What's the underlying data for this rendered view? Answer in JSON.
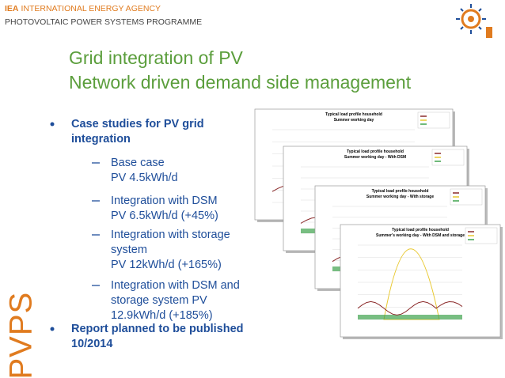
{
  "header": {
    "agency_abbr": "IEA",
    "agency": "INTERNATIONAL ENERGY AGENCY",
    "programme": "PHOTOVOLTAIC POWER SYSTEMS PROGRAMME"
  },
  "title": {
    "line1": "Grid integration of PV",
    "line2": "Network driven demand side management"
  },
  "bullets": [
    {
      "text": "Case studies for PV grid integration",
      "sub": [
        {
          "label": "Base case",
          "detail": "PV 4.5kWh/d"
        },
        {
          "label": "Integration with DSM",
          "detail": "PV 6.5kWh/d (+45%)"
        },
        {
          "label": "Integration with storage system",
          "detail": "PV 12kWh/d (+165%)"
        },
        {
          "label": "Integration with DSM and storage system PV 12.9kWh/d (+185%)"
        }
      ]
    },
    {
      "text": "Report planned to be published 10/2014"
    }
  ],
  "side_label": "PVPS",
  "figures": [
    {
      "title_line1": "Typical load profile household",
      "title_line2": "Summer working day"
    },
    {
      "title_line1": "Typical load profile household",
      "title_line2": "Summer working day - With DSM"
    },
    {
      "title_line1": "Typical load profile household",
      "title_line2": "Summer working day - With storage"
    },
    {
      "title_line1": "Typical load profile household",
      "title_line2": "Summer's working day - With DSM and storage"
    }
  ]
}
